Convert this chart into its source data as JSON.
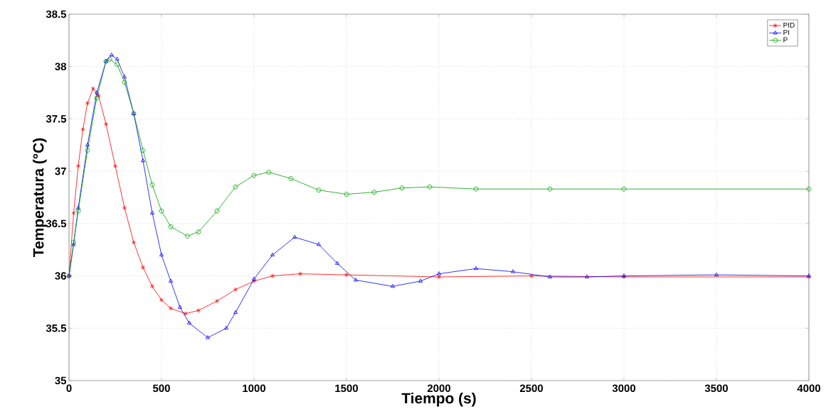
{
  "chart_data": {
    "type": "line",
    "xlabel": "Tiempo (s)",
    "ylabel": "Temperatura (°C)",
    "xlim": [
      0,
      4000
    ],
    "ylim": [
      35,
      38.5
    ],
    "xticks": [
      0,
      500,
      1000,
      1500,
      2000,
      2500,
      3000,
      3500,
      4000
    ],
    "yticks": [
      35,
      35.5,
      36,
      36.5,
      37,
      37.5,
      38,
      38.5
    ],
    "grid": true,
    "legend": "top right",
    "line_style": "solid",
    "series": [
      {
        "name": "PID",
        "color": "#ff0000",
        "marker": "cross",
        "x": [
          0,
          25,
          50,
          75,
          100,
          130,
          160,
          200,
          250,
          300,
          350,
          400,
          450,
          500,
          550,
          630,
          700,
          800,
          900,
          1000,
          1100,
          1250,
          1500,
          2000,
          2500,
          3000,
          4000
        ],
        "values": [
          36,
          36.6,
          37.05,
          37.4,
          37.65,
          37.79,
          37.72,
          37.45,
          37.05,
          36.65,
          36.32,
          36.08,
          35.9,
          35.77,
          35.69,
          35.64,
          35.67,
          35.76,
          35.87,
          35.95,
          36.0,
          36.02,
          36.01,
          35.99,
          36.0,
          35.99,
          35.99
        ]
      },
      {
        "name": "PI",
        "color": "#0000ff",
        "marker": "triangle",
        "x": [
          0,
          25,
          50,
          100,
          150,
          200,
          230,
          260,
          300,
          350,
          400,
          450,
          500,
          550,
          600,
          650,
          750,
          850,
          900,
          1000,
          1100,
          1220,
          1350,
          1450,
          1550,
          1750,
          1900,
          2000,
          2200,
          2400,
          2600,
          2800,
          3000,
          3500,
          4000
        ],
        "values": [
          36,
          36.3,
          36.65,
          37.25,
          37.75,
          38.05,
          38.11,
          38.07,
          37.9,
          37.55,
          37.1,
          36.6,
          36.2,
          35.95,
          35.7,
          35.55,
          35.41,
          35.5,
          35.65,
          35.97,
          36.2,
          36.37,
          36.3,
          36.12,
          35.96,
          35.9,
          35.95,
          36.02,
          36.07,
          36.04,
          35.99,
          35.99,
          36.0,
          36.01,
          36.0
        ]
      },
      {
        "name": "P",
        "color": "#00a000",
        "marker": "circle",
        "x": [
          0,
          25,
          50,
          100,
          150,
          200,
          220,
          260,
          300,
          350,
          400,
          450,
          500,
          550,
          640,
          700,
          800,
          900,
          1000,
          1080,
          1200,
          1350,
          1500,
          1650,
          1800,
          1950,
          2200,
          2600,
          3000,
          4000
        ],
        "values": [
          36,
          36.32,
          36.62,
          37.2,
          37.7,
          38.05,
          38.07,
          38.02,
          37.85,
          37.55,
          37.2,
          36.87,
          36.62,
          36.47,
          36.38,
          36.42,
          36.62,
          36.85,
          36.96,
          36.99,
          36.93,
          36.82,
          36.78,
          36.8,
          36.84,
          36.85,
          36.83,
          36.83,
          36.83,
          36.83
        ]
      }
    ]
  }
}
